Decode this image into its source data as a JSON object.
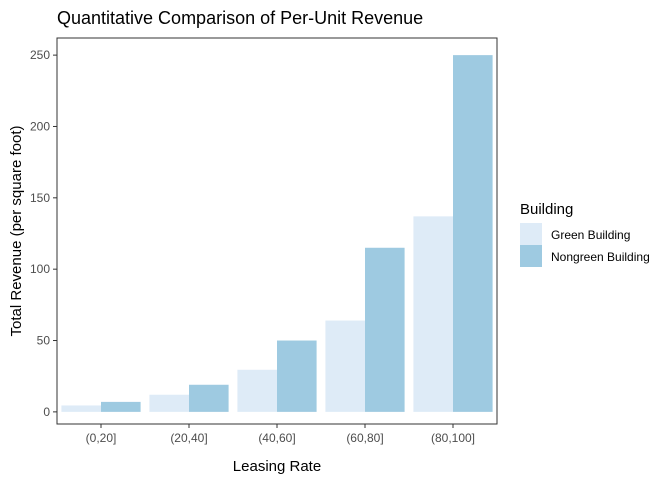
{
  "chart_data": {
    "type": "bar",
    "title": "Quantitative Comparison of Per-Unit Revenue",
    "xlabel": "Leasing Rate",
    "ylabel": "Total Revenue (per square foot)",
    "categories": [
      "(0,20]",
      "(20,40]",
      "(40,60]",
      "(60,80]",
      "(80,100]"
    ],
    "series": [
      {
        "name": "Green Building",
        "color": "#deebf7",
        "values": [
          4.5,
          12,
          29.5,
          64,
          137
        ]
      },
      {
        "name": "Nongreen Building",
        "color": "#9ecae1",
        "values": [
          7,
          19,
          50,
          115,
          250
        ]
      }
    ],
    "ylim": [
      -8.5,
      262
    ],
    "yticks": [
      0,
      50,
      100,
      150,
      200,
      250
    ],
    "legend": {
      "title": "Building",
      "position": "right"
    },
    "grid": false
  }
}
